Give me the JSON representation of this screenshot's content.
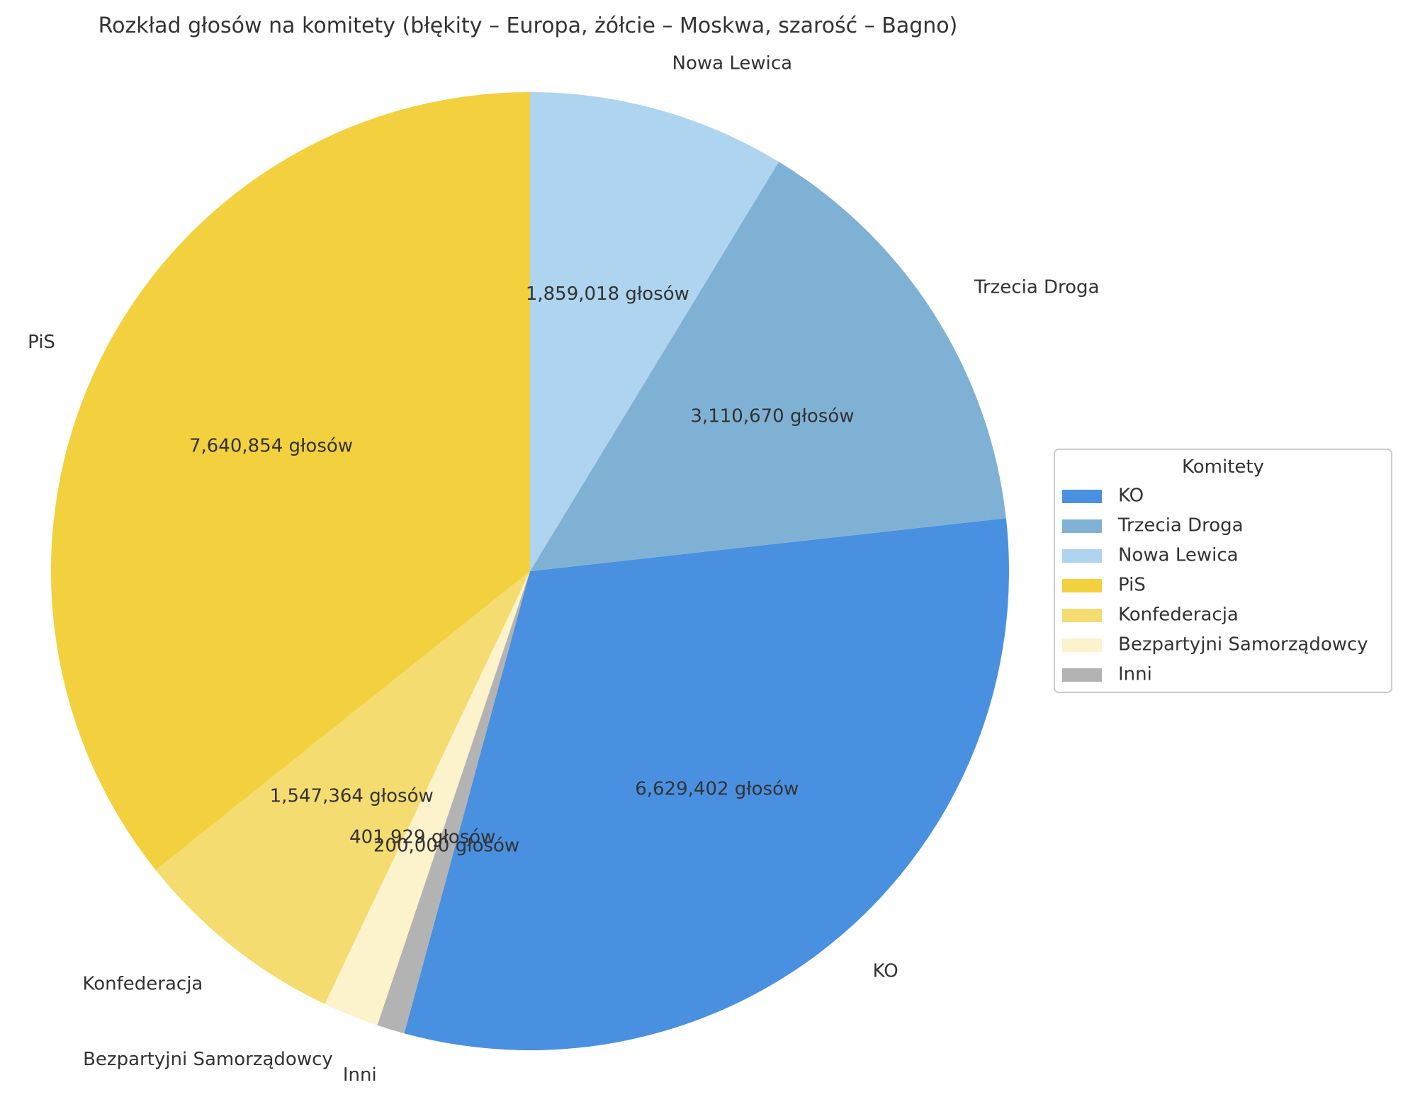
{
  "chart_data": {
    "type": "pie",
    "title": "Rozkład głosów na komitety (błękity – Europa, żółcie – Moskwa, szarość – Bagno)",
    "value_suffix": " głosów",
    "start_angle_deg": 90,
    "direction": "counterclockwise",
    "slices": [
      {
        "label": "PiS",
        "value": 7640854,
        "color": "#F3D03E"
      },
      {
        "label": "Konfederacja",
        "value": 1547364,
        "color": "#F5DC70"
      },
      {
        "label": "Bezpartyjni Samorządowcy",
        "value": 401929,
        "color": "#FCF2CC"
      },
      {
        "label": "Inni",
        "value": 200000,
        "color": "#B3B3B3"
      },
      {
        "label": "KO",
        "value": 6629402,
        "color": "#4A90E0"
      },
      {
        "label": "Trzecia Droga",
        "value": 3110670,
        "color": "#7FB1D4"
      },
      {
        "label": "Nowa Lewica",
        "value": 1859018,
        "color": "#AED4EF"
      }
    ],
    "legend": {
      "title": "Komitety",
      "position": "center-right",
      "entries": [
        "KO",
        "Trzecia Droga",
        "Nowa Lewica",
        "PiS",
        "Konfederacja",
        "Bezpartyjni Samorządowcy",
        "Inni"
      ]
    }
  }
}
